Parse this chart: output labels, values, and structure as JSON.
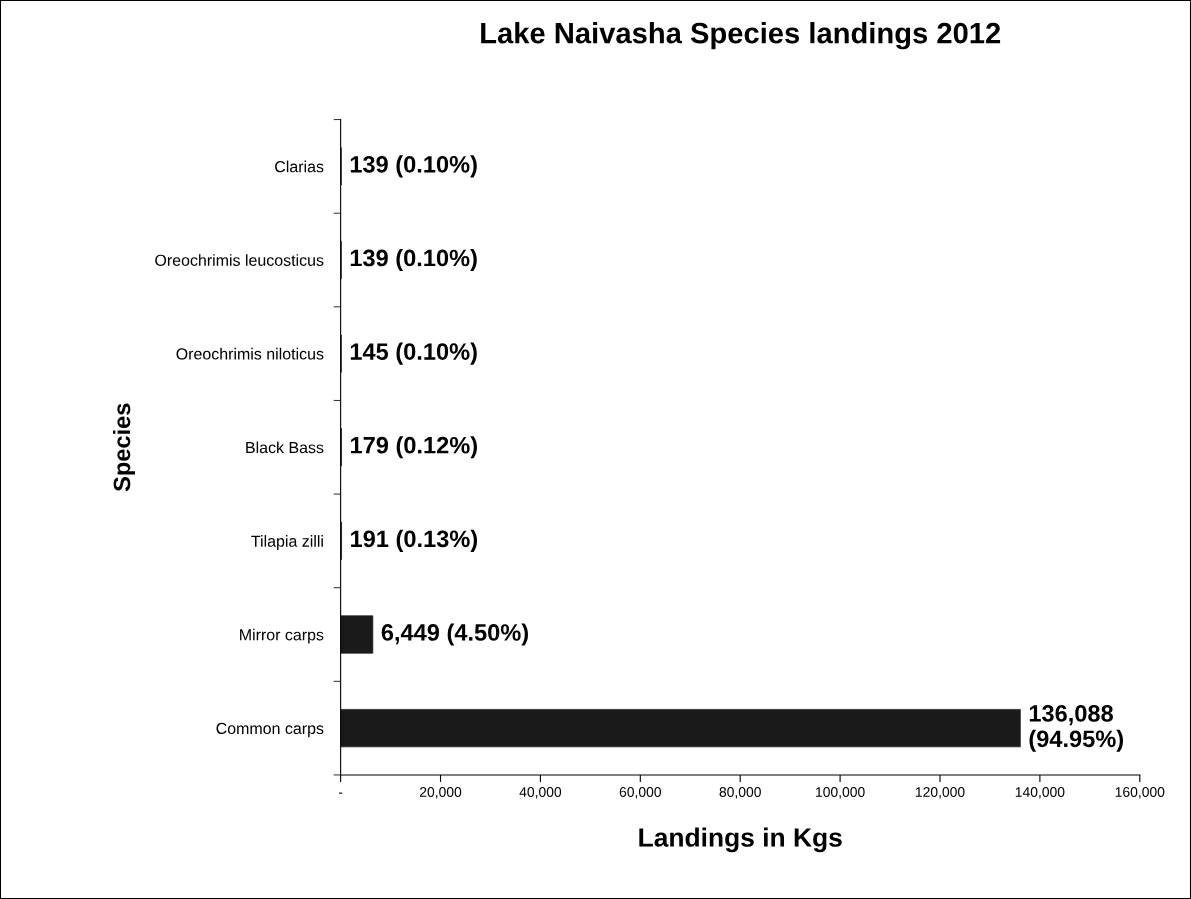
{
  "chart_data": {
    "type": "bar",
    "orientation": "horizontal",
    "title": "Lake Naivasha Species landings 2012",
    "xlabel": "Landings in Kgs",
    "ylabel": "Species",
    "categories": [
      "Clarias",
      "Oreochrimis leucosticus",
      "Oreochrimis niloticus",
      "Black Bass",
      "Tilapia zilli",
      "Mirror carps",
      "Common carps"
    ],
    "values": [
      139,
      139,
      145,
      179,
      191,
      6449,
      136088
    ],
    "value_labels": [
      "139 (0.10%)",
      "139 (0.10%)",
      "145 (0.10%)",
      "179 (0.12%)",
      "191 (0.13%)",
      "6,449 (4.50%)",
      "136,088 (94.95%)"
    ],
    "color": "#1a1a1a",
    "xlim": [
      0,
      160000
    ],
    "xticks": [
      {
        "value": 0,
        "label": "-"
      },
      {
        "value": 20000,
        "label": "20,000"
      },
      {
        "value": 40000,
        "label": "40,000"
      },
      {
        "value": 60000,
        "label": "60,000"
      },
      {
        "value": 80000,
        "label": "80,000"
      },
      {
        "value": 100000,
        "label": "100,000"
      },
      {
        "value": 120000,
        "label": "120,000"
      },
      {
        "value": 140000,
        "label": "140,000"
      },
      {
        "value": 160000,
        "label": "160,000"
      }
    ],
    "grid": false,
    "legend": false
  }
}
